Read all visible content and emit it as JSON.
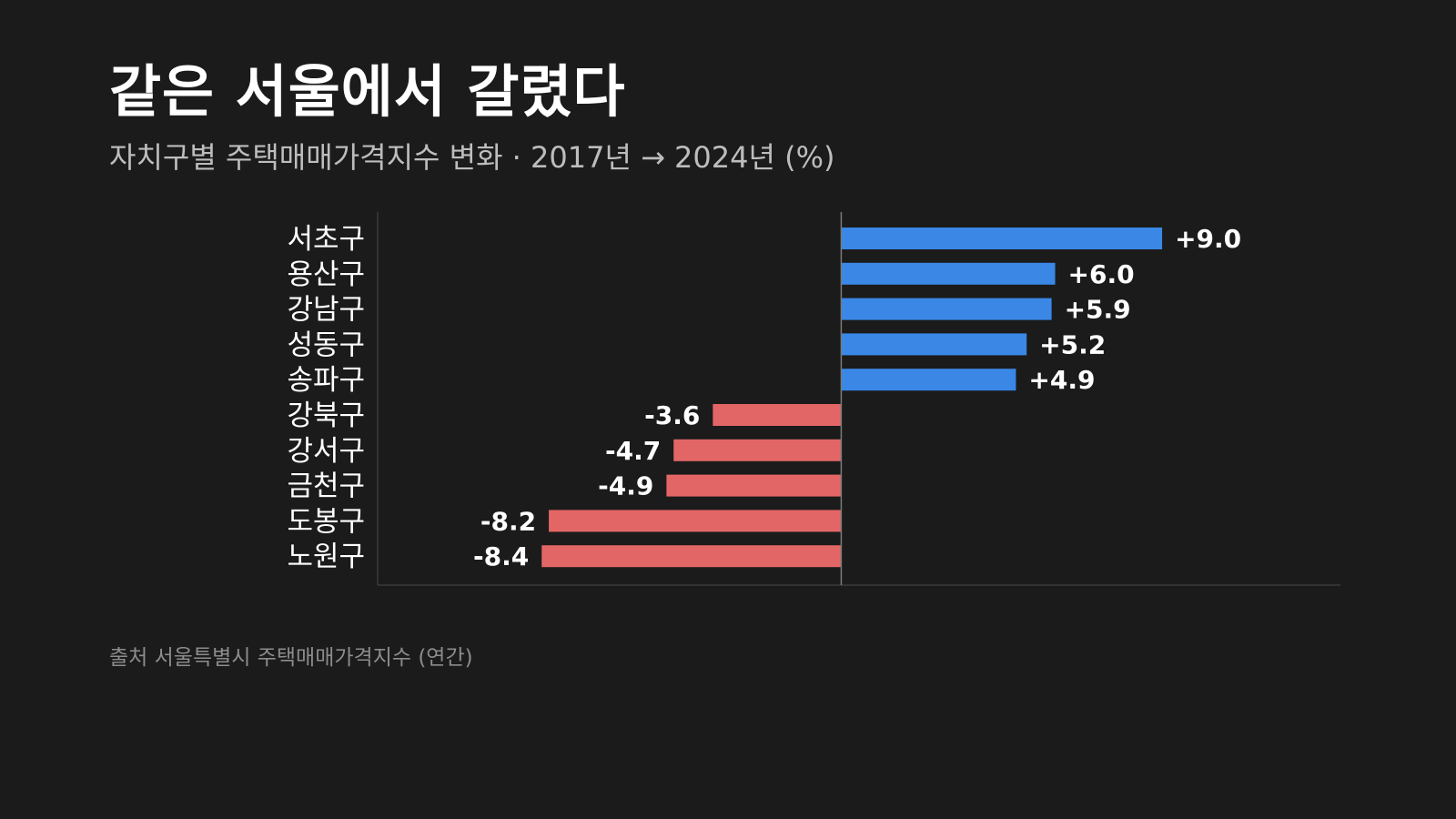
{
  "title": "같은 서울에서 갈렸다",
  "subtitle": "자치구별 주택매매가격지수 변화 · 2017년 → 2024년 (%)",
  "source": "출처 서울특별시 주택매매가격지수 (연간)",
  "colors": {
    "background": "#1b1b1b",
    "positive": "#3a87e6",
    "negative": "#e36666",
    "axis": "#7a7a7a"
  },
  "chart_data": {
    "type": "bar",
    "orientation": "horizontal",
    "categories": [
      "서초구",
      "용산구",
      "강남구",
      "성동구",
      "송파구",
      "강북구",
      "강서구",
      "금천구",
      "도봉구",
      "노원구"
    ],
    "values": [
      9.0,
      6.0,
      5.9,
      5.2,
      4.9,
      -3.6,
      -4.7,
      -4.9,
      -8.2,
      -8.4
    ],
    "value_labels": [
      "+9.0",
      "+6.0",
      "+5.9",
      "+5.2",
      "+4.9",
      "-3.6",
      "-4.7",
      "-4.9",
      "-8.2",
      "-8.4"
    ],
    "xlim": [
      -13,
      14
    ],
    "grid": false,
    "legend": "none"
  }
}
